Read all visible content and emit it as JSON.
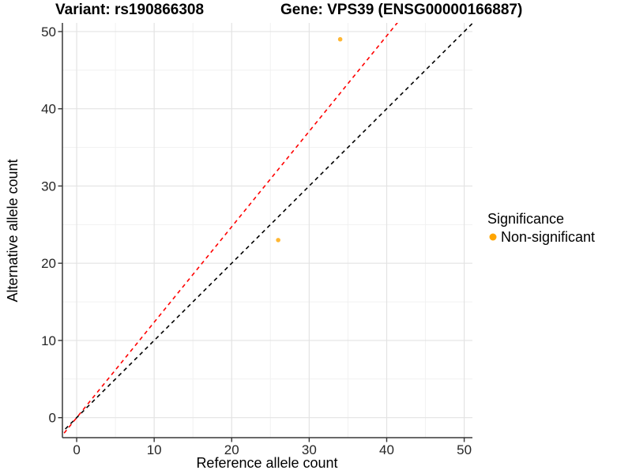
{
  "titles": {
    "left": "Variant: rs190866308",
    "right": "Gene: VPS39 (ENSG00000166887)"
  },
  "chart_data": {
    "type": "scatter",
    "xlabel": "Reference allele count",
    "ylabel": "Alternative allele count",
    "xlim": [
      -1.84,
      51.06
    ],
    "ylim": [
      -2.59,
      51.12
    ],
    "x_ticks": [
      0,
      10,
      20,
      30,
      40,
      50
    ],
    "y_ticks": [
      0,
      10,
      20,
      30,
      40,
      50
    ],
    "x_minor_ticks": [
      5,
      15,
      25,
      35,
      45
    ],
    "y_minor_ticks": [
      5,
      15,
      25,
      35,
      45
    ],
    "grid": true,
    "points": [
      {
        "x": 34,
        "y": 49,
        "significance": "Non-significant"
      },
      {
        "x": 26,
        "y": 23,
        "significance": "Non-significant"
      }
    ],
    "point_color": "#FFA500",
    "point_opacity": 0.8,
    "lines": [
      {
        "name": "identity-line",
        "slope": 1.0,
        "intercept": 0,
        "color": "#000000",
        "style": "dashed"
      },
      {
        "name": "fit-line",
        "slope": 1.236,
        "intercept": 0,
        "color": "#FF0000",
        "style": "dashed"
      }
    ],
    "legend": {
      "position": "right",
      "title": "Significance",
      "items": [
        {
          "label": "Non-significant",
          "color": "#FFA500"
        }
      ]
    },
    "colors": {
      "grid_major": "#E3E3E3",
      "grid_minor": "#F1F1F1",
      "axis_line": "#383838",
      "tick_mark": "#333333"
    }
  }
}
